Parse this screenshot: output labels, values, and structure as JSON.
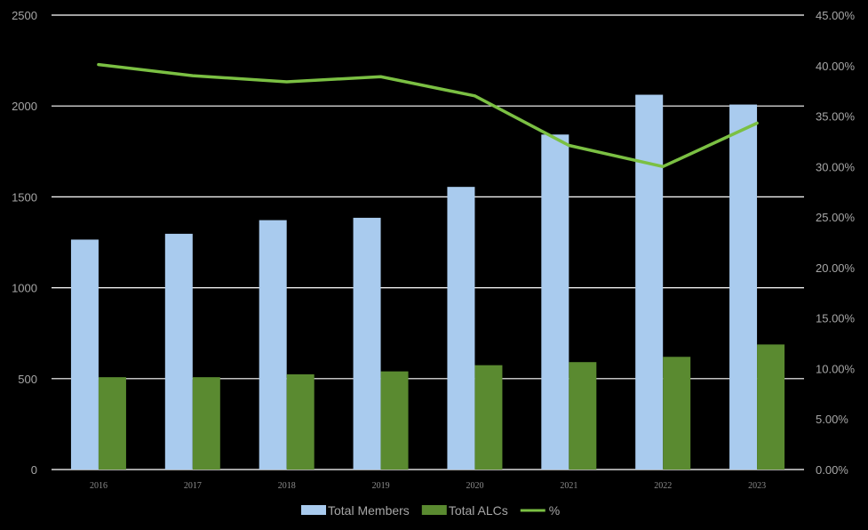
{
  "chart_data": {
    "type": "bar",
    "categories": [
      "2016",
      "2017",
      "2018",
      "2019",
      "2020",
      "2021",
      "2022",
      "2023"
    ],
    "series": [
      {
        "name": "Total Members",
        "kind": "bar",
        "axis": "left",
        "color": "#a9cbee",
        "values": [
          1265,
          1297,
          1372,
          1385,
          1555,
          1843,
          2062,
          2008
        ]
      },
      {
        "name": "Total ALCs",
        "kind": "bar",
        "axis": "left",
        "color": "#5a8a30",
        "values": [
          508,
          508,
          524,
          540,
          574,
          591,
          620,
          688
        ]
      },
      {
        "name": "%",
        "kind": "line",
        "axis": "right",
        "color": "#7bc043",
        "values": [
          40.1,
          39.0,
          38.4,
          38.9,
          37.0,
          32.1,
          30.0,
          34.3
        ]
      }
    ],
    "y_left": {
      "ylim": [
        0,
        2500
      ],
      "ticks": [
        "0",
        "500",
        "1000",
        "1500",
        "2000",
        "2500"
      ]
    },
    "y_right": {
      "ylim": [
        0,
        45
      ],
      "ticks": [
        "0.00%",
        "5.00%",
        "10.00%",
        "15.00%",
        "20.00%",
        "25.00%",
        "30.00%",
        "35.00%",
        "40.00%",
        "45.00%"
      ]
    },
    "grid": true,
    "legend_position": "bottom",
    "title": "",
    "xlabel": "",
    "ylabel": ""
  },
  "colors": {
    "background": "#000000",
    "gridline": "#ffffff",
    "tick_text": "#a6a6a6"
  }
}
